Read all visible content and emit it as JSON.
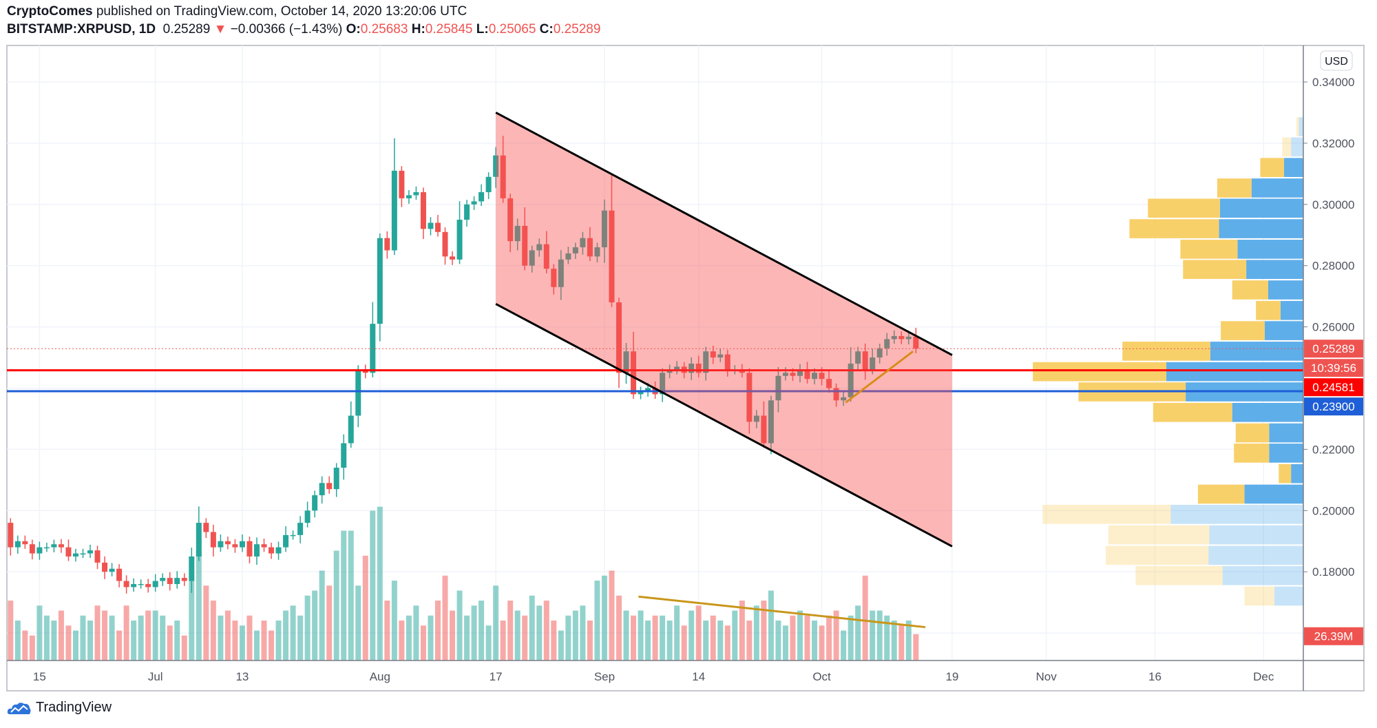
{
  "header": {
    "author": "CryptoComes",
    "published": "published on TradingView.com, October 14, 2020 13:20:06 UTC",
    "symbol": "BITSTAMP:XRPUSD, 1D",
    "last": "0.25289",
    "change": "−0.00366 (−1.43%)",
    "o_label": "O:",
    "o": "0.25683",
    "h_label": "H:",
    "h": "0.25845",
    "l_label": "L:",
    "l": "0.25065",
    "c_label": "C:",
    "c": "0.25289",
    "direction_icon": "triangle-down-icon"
  },
  "footer": {
    "brand": "TradingView",
    "logo_icon": "tradingview-cloud-icon"
  },
  "colors": {
    "up": "#26a69a",
    "down": "#ef5350",
    "channel": "#f75252",
    "support_red": "#ff0000",
    "support_blue": "#1e5ed6",
    "trend": "#d98c1a",
    "profile_up": "#5eaeea",
    "profile_down": "#f8d06a"
  },
  "chart_data": {
    "type": "candlestick",
    "currency_label": "USD",
    "ylim": [
      0.165,
      0.345
    ],
    "yticks": [
      "0.34000",
      "0.32000",
      "0.30000",
      "0.28000",
      "0.26000",
      "0.22000",
      "0.20000",
      "0.18000"
    ],
    "ytick_values": [
      0.34,
      0.32,
      0.3,
      0.28,
      0.26,
      0.22,
      0.2,
      0.18
    ],
    "start_date": "2020-06-11",
    "xticks": [
      {
        "label": "15",
        "day": 4
      },
      {
        "label": "Jul",
        "day": 20
      },
      {
        "label": "13",
        "day": 32
      },
      {
        "label": "Aug",
        "day": 51
      },
      {
        "label": "17",
        "day": 67
      },
      {
        "label": "Sep",
        "day": 82
      },
      {
        "label": "14",
        "day": 95
      },
      {
        "label": "Oct",
        "day": 112
      },
      {
        "label": "19",
        "day": 130
      },
      {
        "label": "Nov",
        "day": 143
      },
      {
        "label": "16",
        "day": 158
      },
      {
        "label": "Dec",
        "day": 173
      }
    ],
    "first_open": 0.196,
    "closes": [
      0.188,
      0.19,
      0.189,
      0.186,
      0.188,
      0.188,
      0.189,
      0.188,
      0.185,
      0.186,
      0.186,
      0.187,
      0.183,
      0.18,
      0.181,
      0.177,
      0.175,
      0.176,
      0.176,
      0.175,
      0.177,
      0.178,
      0.176,
      0.178,
      0.177,
      0.185,
      0.196,
      0.193,
      0.188,
      0.19,
      0.189,
      0.188,
      0.19,
      0.185,
      0.189,
      0.188,
      0.186,
      0.188,
      0.192,
      0.192,
      0.196,
      0.2,
      0.205,
      0.209,
      0.207,
      0.214,
      0.222,
      0.231,
      0.246,
      0.245,
      0.261,
      0.289,
      0.285,
      0.311,
      0.302,
      0.303,
      0.304,
      0.292,
      0.294,
      0.291,
      0.283,
      0.282,
      0.295,
      0.3,
      0.301,
      0.304,
      0.309,
      0.316,
      0.302,
      0.288,
      0.293,
      0.28,
      0.285,
      0.287,
      0.279,
      0.273,
      0.282,
      0.284,
      0.286,
      0.289,
      0.283,
      0.286,
      0.298,
      0.268,
      0.245,
      0.252,
      0.238,
      0.239,
      0.24,
      0.238,
      0.245,
      0.246,
      0.247,
      0.245,
      0.248,
      0.245,
      0.252,
      0.25,
      0.251,
      0.246,
      0.246,
      0.245,
      0.229,
      0.231,
      0.222,
      0.236,
      0.244,
      0.245,
      0.244,
      0.246,
      0.243,
      0.245,
      0.243,
      0.24,
      0.236,
      0.237,
      0.248,
      0.252,
      0.246,
      0.25,
      0.253,
      0.256,
      0.257,
      0.256,
      0.2568,
      0.25289
    ],
    "volumes_millions": [
      60,
      40,
      30,
      25,
      55,
      45,
      40,
      50,
      35,
      30,
      45,
      40,
      55,
      50,
      45,
      30,
      55,
      40,
      45,
      50,
      50,
      45,
      35,
      40,
      25,
      80,
      110,
      75,
      60,
      45,
      50,
      40,
      35,
      45,
      30,
      40,
      30,
      40,
      50,
      55,
      45,
      65,
      70,
      90,
      75,
      110,
      130,
      130,
      75,
      105,
      150,
      154,
      60,
      80,
      40,
      45,
      55,
      35,
      45,
      60,
      85,
      50,
      70,
      45,
      55,
      60,
      35,
      75,
      40,
      60,
      50,
      45,
      65,
      55,
      60,
      40,
      30,
      45,
      50,
      55,
      40,
      80,
      85,
      90,
      65,
      50,
      45,
      50,
      40,
      45,
      45,
      40,
      55,
      35,
      50,
      55,
      40,
      45,
      40,
      35,
      50,
      60,
      40,
      55,
      60,
      70,
      40,
      35,
      45,
      50,
      45,
      40,
      35,
      45,
      50,
      30,
      45,
      55,
      85,
      50,
      50,
      45,
      40,
      35,
      40,
      26.39
    ],
    "volume_last_label": "26.39M",
    "horizontal_levels": [
      {
        "price": 0.25289,
        "label": "0.25289",
        "style": "dotted",
        "color": "#ef5350"
      },
      {
        "price": 0.24581,
        "label": "0.24581",
        "style": "solid",
        "color": "#ff0000"
      },
      {
        "price": 0.239,
        "label": "0.23900",
        "style": "solid",
        "color": "#1e5ed6"
      }
    ],
    "countdown_label": "10:39:56",
    "channel": {
      "start_day": 67,
      "end_day": 130,
      "upper": [
        0.33,
        0.2508
      ],
      "lower": [
        0.2675,
        0.1883
      ]
    },
    "price_trendline": {
      "start_day": 115.3,
      "end_day": 124.6,
      "prices": [
        0.2353,
        0.252
      ]
    },
    "volume_trendline": {
      "start_day": 86.7,
      "end_day": 126.3,
      "volumes_millions": [
        64,
        33.4
      ]
    },
    "volume_profile": [
      {
        "top": 0.3287,
        "up": 5,
        "down": 3,
        "faded": true
      },
      {
        "top": 0.3221,
        "up": 14,
        "down": 10,
        "faded": true
      },
      {
        "top": 0.3154,
        "up": 22,
        "down": 27,
        "faded": false
      },
      {
        "top": 0.3087,
        "up": 59,
        "down": 39,
        "faded": false
      },
      {
        "top": 0.3021,
        "up": 95,
        "down": 82,
        "faded": false
      },
      {
        "top": 0.2954,
        "up": 96,
        "down": 102,
        "faded": false
      },
      {
        "top": 0.2887,
        "up": 75,
        "down": 65,
        "faded": false
      },
      {
        "top": 0.2821,
        "up": 65,
        "down": 72,
        "faded": false
      },
      {
        "top": 0.2754,
        "up": 40,
        "down": 41,
        "faded": false
      },
      {
        "top": 0.2687,
        "up": 26,
        "down": 28,
        "faded": false
      },
      {
        "top": 0.2621,
        "up": 44,
        "down": 50,
        "faded": false
      },
      {
        "top": 0.2554,
        "up": 106,
        "down": 100,
        "faded": false
      },
      {
        "top": 0.2487,
        "up": 156,
        "down": 152,
        "faded": false
      },
      {
        "top": 0.2421,
        "up": 134,
        "down": 122,
        "faded": false
      },
      {
        "top": 0.2354,
        "up": 81,
        "down": 90,
        "faded": false
      },
      {
        "top": 0.2287,
        "up": 39,
        "down": 38,
        "faded": false
      },
      {
        "top": 0.2221,
        "up": 39,
        "down": 40,
        "faded": false
      },
      {
        "top": 0.2154,
        "up": 14,
        "down": 14,
        "faded": false
      },
      {
        "top": 0.2087,
        "up": 67,
        "down": 53,
        "faded": false
      },
      {
        "top": 0.2021,
        "up": 151,
        "down": 146,
        "faded": true
      },
      {
        "top": 0.1954,
        "up": 107,
        "down": 115,
        "faded": true
      },
      {
        "top": 0.1887,
        "up": 108,
        "down": 117,
        "faded": true
      },
      {
        "top": 0.1821,
        "up": 92,
        "down": 99,
        "faded": true
      },
      {
        "top": 0.1754,
        "up": 33,
        "down": 34,
        "faded": true
      }
    ]
  }
}
